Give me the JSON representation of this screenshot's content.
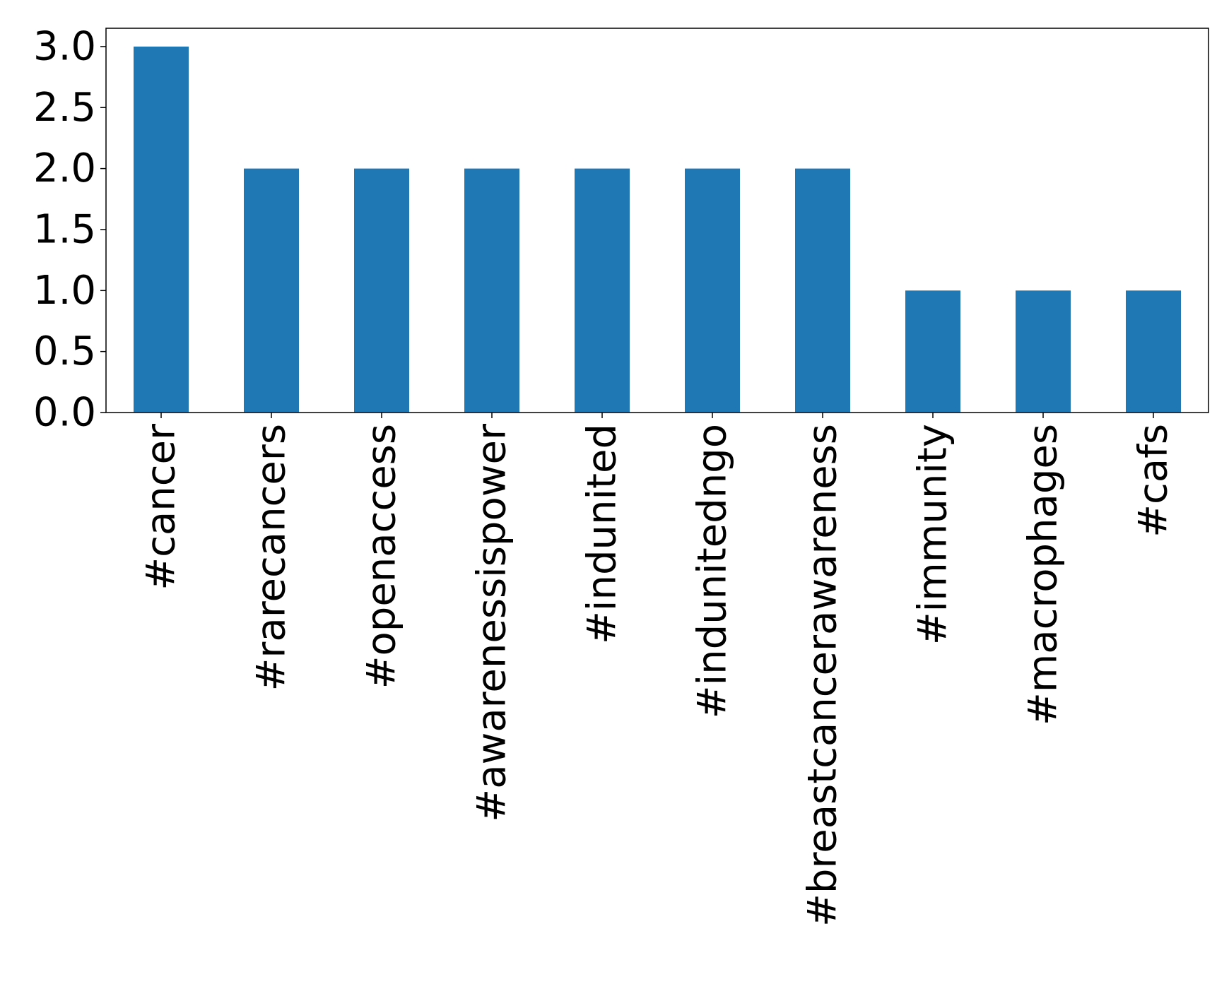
{
  "chart_data": {
    "type": "bar",
    "categories": [
      "#cancer",
      "#rarecancers",
      "#openaccess",
      "#awarenessispower",
      "#indunited",
      "#indunitedngo",
      "#breastcancerawareness",
      "#immunity",
      "#macrophages",
      "#cafs"
    ],
    "values": [
      3,
      2,
      2,
      2,
      2,
      2,
      2,
      1,
      1,
      1
    ],
    "title": "",
    "xlabel": "",
    "ylabel": "",
    "ylim": [
      0,
      3.15
    ],
    "yticks": [
      "0.0",
      "0.5",
      "1.0",
      "1.5",
      "2.0",
      "2.5",
      "3.0"
    ],
    "grid": false,
    "legend": "none",
    "colors": {
      "bar": "#1f77b4",
      "axis": "#000000",
      "background": "#ffffff"
    }
  }
}
